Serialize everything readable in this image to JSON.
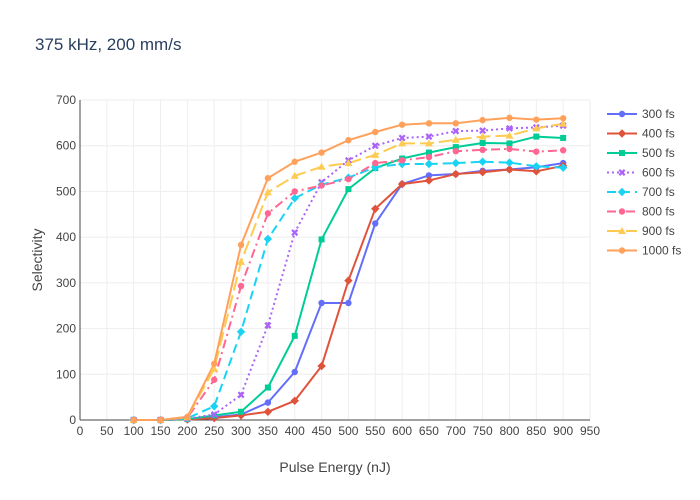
{
  "chart_data": {
    "type": "line",
    "title": "375 kHz, 200 mm/s",
    "xlabel": "Pulse Energy (nJ)",
    "ylabel": "Selectivity",
    "xlim": [
      0,
      950
    ],
    "ylim": [
      0,
      700
    ],
    "x_ticks": [
      0,
      50,
      100,
      150,
      200,
      250,
      300,
      350,
      400,
      450,
      500,
      550,
      600,
      650,
      700,
      750,
      800,
      850,
      900,
      950
    ],
    "y_ticks": [
      0,
      100,
      200,
      300,
      400,
      500,
      600,
      700
    ],
    "grid": true,
    "legend_position": "right",
    "x": [
      100,
      150,
      200,
      250,
      300,
      350,
      400,
      450,
      500,
      550,
      600,
      650,
      700,
      750,
      800,
      850,
      900
    ],
    "series": [
      {
        "name": "300 fs",
        "color": "#636efa",
        "dash": "solid",
        "marker": "circle",
        "values": [
          0,
          0,
          2,
          6,
          12,
          38,
          105,
          256,
          256,
          430,
          516,
          535,
          538,
          545,
          548,
          553,
          562
        ]
      },
      {
        "name": "400 fs",
        "color": "#e0533b",
        "dash": "solid",
        "marker": "diamond",
        "values": [
          0,
          0,
          1,
          4,
          10,
          18,
          42,
          118,
          305,
          462,
          516,
          524,
          538,
          542,
          548,
          544,
          556
        ]
      },
      {
        "name": "500 fs",
        "color": "#00cc96",
        "dash": "solid",
        "marker": "square",
        "values": [
          0,
          0,
          2,
          10,
          18,
          71,
          184,
          395,
          505,
          551,
          572,
          585,
          597,
          606,
          605,
          620,
          617
        ]
      },
      {
        "name": "600 fs",
        "color": "#ab63fa",
        "dash": "dot",
        "marker": "x",
        "values": [
          0,
          0,
          3,
          12,
          55,
          207,
          410,
          520,
          568,
          600,
          617,
          620,
          632,
          633,
          638,
          640,
          644
        ]
      },
      {
        "name": "700 fs",
        "color": "#19d3f3",
        "dash": "dash",
        "marker": "diamond",
        "values": [
          0,
          0,
          4,
          30,
          193,
          396,
          485,
          515,
          530,
          553,
          560,
          560,
          562,
          565,
          563,
          555,
          552
        ]
      },
      {
        "name": "800 fs",
        "color": "#ff6692",
        "dash": "dashdot",
        "marker": "circle",
        "values": [
          0,
          0,
          5,
          88,
          293,
          452,
          500,
          513,
          527,
          562,
          568,
          575,
          588,
          591,
          593,
          587,
          590
        ]
      },
      {
        "name": "900 fs",
        "color": "#fecb52",
        "dash": "longdash",
        "marker": "triangle",
        "values": [
          0,
          0,
          6,
          112,
          346,
          498,
          534,
          554,
          562,
          580,
          605,
          605,
          613,
          620,
          622,
          638,
          648
        ]
      },
      {
        "name": "1000 fs",
        "color": "#ffa15a",
        "dash": "solid",
        "marker": "circle",
        "values": [
          0,
          0,
          7,
          123,
          383,
          529,
          565,
          585,
          612,
          630,
          646,
          649,
          649,
          656,
          661,
          657,
          660
        ]
      }
    ]
  }
}
